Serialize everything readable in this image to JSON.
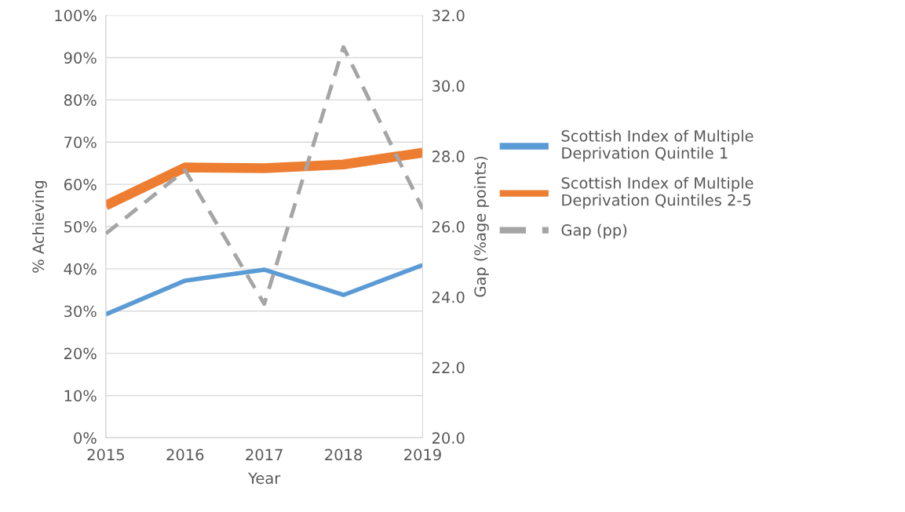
{
  "chart_data": {
    "type": "line",
    "categories": [
      "2015",
      "2016",
      "2017",
      "2018",
      "2019"
    ],
    "xlabel": "Year",
    "ylabel": "% Achieving",
    "y2label": "Gap (%age points)",
    "series": [
      {
        "name": "Scottish Index of Multiple\nDeprivation Quintile 1",
        "color": "#5b9bd5",
        "values": [
          29.2,
          37.2,
          39.8,
          33.8,
          40.9
        ]
      },
      {
        "name": "Scottish Index of Multiple\nDeprivation Quintiles 2-5",
        "color": "#ed7d31",
        "values": [
          55.0,
          64.0,
          63.8,
          64.7,
          67.5
        ]
      },
      {
        "name": "Gap (pp)",
        "color": "#a5a5a5",
        "values": [
          25.8,
          27.6,
          23.8,
          31.1,
          26.5
        ],
        "axis": "y2",
        "line_style": "dashed"
      }
    ],
    "ylim": [
      0,
      100
    ],
    "yticks": [
      {
        "value": 0,
        "label": "0%"
      },
      {
        "value": 10,
        "label": "10%"
      },
      {
        "value": 20,
        "label": "20%"
      },
      {
        "value": 30,
        "label": "30%"
      },
      {
        "value": 40,
        "label": "40%"
      },
      {
        "value": 50,
        "label": "50%"
      },
      {
        "value": 60,
        "label": "60%"
      },
      {
        "value": 70,
        "label": "70%"
      },
      {
        "value": 80,
        "label": "80%"
      },
      {
        "value": 90,
        "label": "90%"
      },
      {
        "value": 100,
        "label": "100%"
      }
    ],
    "y2lim": [
      20,
      32
    ],
    "y2ticks": [
      {
        "value": 20,
        "label": "20.0"
      },
      {
        "value": 22,
        "label": "22.0"
      },
      {
        "value": 24,
        "label": "24.0"
      },
      {
        "value": 26,
        "label": "26.0"
      },
      {
        "value": 28,
        "label": "28.0"
      },
      {
        "value": 30,
        "label": "30.0"
      },
      {
        "value": 32,
        "label": "32.0"
      }
    ],
    "grid": "y",
    "legend": "right",
    "marker": "none"
  }
}
